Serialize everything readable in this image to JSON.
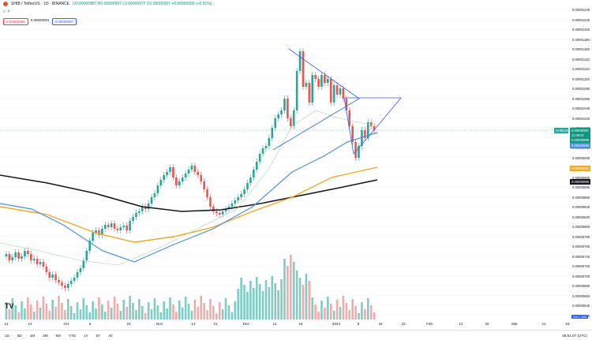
{
  "header": {
    "symbol": "SHIB / TetherUS · 1D · BINANCE",
    "ohlc": "O0.00000987 H0.00000997 L0.00000977 C0.00000997 +0.00000009 (+0.91%)",
    "sub_toggle": "v",
    "sub_count": "4",
    "sell_price": "0.00000996",
    "spread": "0.00000001",
    "buy_price": "0.00000997"
  },
  "y_axis": {
    "ticks": [
      "0.00001240",
      "0.00001220",
      "0.00001200",
      "0.00001180",
      "0.00001160",
      "0.00001140",
      "0.00001120",
      "0.00001100",
      "0.00001080",
      "0.00001060",
      "0.00001040",
      "0.00001020",
      "0.00001000",
      "0.00000980",
      "0.00000960",
      "0.00000940",
      "0.00000920",
      "0.00000900",
      "0.00000880",
      "0.00000860",
      "0.00000840",
      "0.00000820",
      "0.00000800",
      "0.00000780",
      "0.00000760",
      "0.00000740",
      "0.00000720",
      "0.00000700",
      "0.00000680",
      "0.00000660",
      "0.00000640",
      "0.00000620"
    ],
    "labels": [
      {
        "text": "SHIBUSDT",
        "color": "#26a69a"
      },
      {
        "text": "0.00000997",
        "color": "#089981"
      },
      {
        "text": "11:08:57",
        "color": "#089981"
      },
      {
        "text": "0.00000996",
        "color": "#089981"
      },
      {
        "text": "0.00000986",
        "color": "#4a90e2"
      },
      {
        "text": "0.00000922",
        "color": "#f5a623"
      },
      {
        "text": "0.00000896",
        "color": "#131722"
      }
    ],
    "scale_flag": "Vol 1.18B"
  },
  "x_axis": {
    "labels": [
      "11",
      "14",
      "Oct",
      "6",
      "23",
      "Nov",
      "13",
      "21",
      "Dec",
      "11",
      "18",
      "2024",
      "8",
      "15",
      "22",
      "Feb",
      "12",
      "20",
      "Mar",
      "11",
      "18"
    ]
  },
  "bottom_bar": {
    "ranges": [
      "1D",
      "5D",
      "1M",
      "3M",
      "6M",
      "YTD",
      "1Y",
      "5Y",
      "All"
    ],
    "clock": "08:51:07 (UTC)"
  },
  "logo": "TV",
  "colors": {
    "up": "#26a69a",
    "down": "#ef5350",
    "vol_up": "#80cbc4",
    "vol_down": "#f7a9a8",
    "ma_slow": "#131722",
    "ma_mid": "#f5a623",
    "ma_fast": "#4a90e2",
    "ma_thin": "#a5d6a7",
    "trend": "#2962ff"
  }
}
